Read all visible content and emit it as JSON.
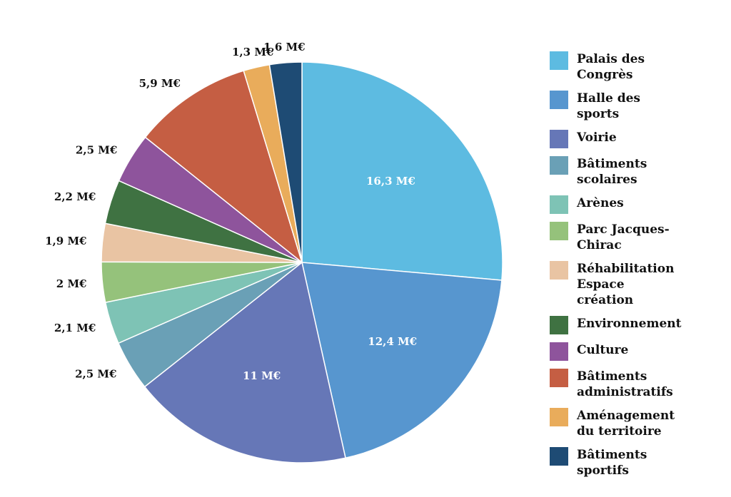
{
  "chart_data": {
    "type": "pie",
    "title": "",
    "start": "top",
    "direction": "clockwise",
    "legend_position": "right",
    "slices": [
      {
        "name": "Palais des\nCongrès",
        "value": 16.3,
        "label": "16,3 M€",
        "color": "#5dbbe1",
        "inside": true
      },
      {
        "name": "Halle des\nsports",
        "value": 12.4,
        "label": "12,4 M€",
        "color": "#5796cf",
        "inside": true
      },
      {
        "name": "Voirie",
        "value": 11,
        "label": "11 M€",
        "color": "#6677b7",
        "inside": true
      },
      {
        "name": "Bâtiments\nscolaires",
        "value": 2.5,
        "label": "2,5 M€",
        "color": "#6aa0b6",
        "inside": false
      },
      {
        "name": "Arènes",
        "value": 2.1,
        "label": "2,1 M€",
        "color": "#7ec3b5",
        "inside": false
      },
      {
        "name": "Parc Jacques-\nChirac",
        "value": 2,
        "label": "2 M€",
        "color": "#95c27b",
        "inside": false
      },
      {
        "name": "Réhabilitation\nEspace\ncréation",
        "value": 1.9,
        "label": "1,9 M€",
        "color": "#e9c4a3",
        "inside": false
      },
      {
        "name": "Environnement",
        "value": 2.2,
        "label": "2,2 M€",
        "color": "#3f7242",
        "inside": false
      },
      {
        "name": "Culture",
        "value": 2.5,
        "label": "2,5 M€",
        "color": "#8e549c",
        "inside": false
      },
      {
        "name": "Bâtiments\nadministratifs",
        "value": 5.9,
        "label": "5,9 M€",
        "color": "#c55e43",
        "inside": false
      },
      {
        "name": "Aménagement\ndu territoire",
        "value": 1.3,
        "label": "1,3 M€",
        "color": "#e9ac5b",
        "inside": false
      },
      {
        "name": "Bâtiments\nsportifs",
        "value": 1.6,
        "label": "1,6 M€",
        "color": "#1e4b74",
        "inside": false
      }
    ]
  }
}
